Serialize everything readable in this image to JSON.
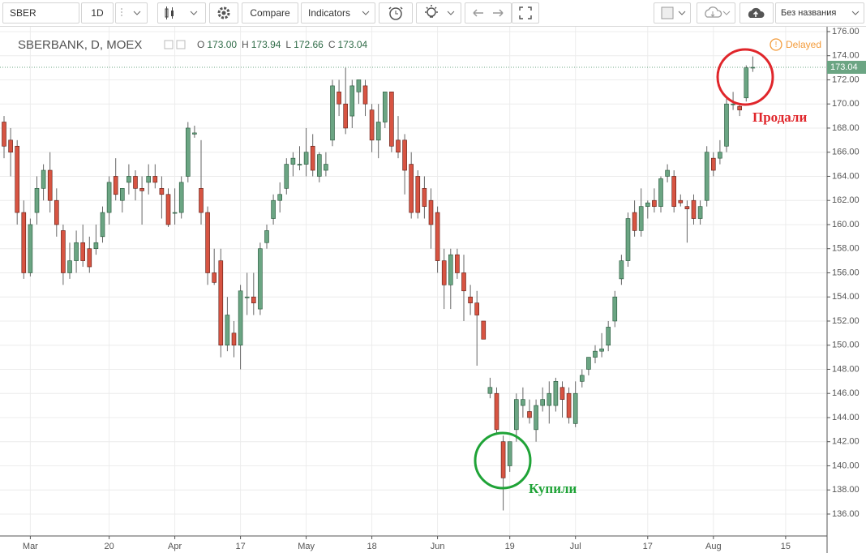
{
  "toolbar": {
    "symbol": "SBER",
    "interval": "1D",
    "compare": "Compare",
    "indicators": "Indicators",
    "layout_name": "Без названия"
  },
  "chart_data": {
    "type": "candlestick",
    "title": "SBERBANK, D, MOEX",
    "ohlc_legend": [
      {
        "key": "O",
        "value": "173.00"
      },
      {
        "key": "H",
        "value": "173.94"
      },
      {
        "key": "L",
        "value": "172.66"
      },
      {
        "key": "C",
        "value": "173.04"
      }
    ],
    "status": "Delayed",
    "up_color": "#6ba583",
    "down_color": "#d75442",
    "grid": true,
    "open": [
      168.5,
      167,
      166.5,
      161,
      156,
      161,
      163,
      164.5,
      162,
      159.5,
      156,
      157,
      158.5,
      158,
      158,
      159,
      161,
      164,
      162,
      163.5,
      164,
      163,
      163.5,
      164,
      163,
      162.5,
      161,
      161,
      164,
      167.5,
      163,
      161,
      156,
      157,
      150,
      151,
      150,
      154,
      154,
      153,
      158.5,
      160.5,
      162,
      163,
      165,
      165,
      165,
      166.5,
      164,
      164.5,
      167,
      171,
      170,
      169,
      171,
      171.5,
      169.5,
      167,
      168.5,
      171,
      167,
      167,
      165,
      164,
      163,
      162,
      161,
      157,
      155,
      157.5,
      156,
      154,
      153.5,
      152,
      146,
      146,
      142,
      140,
      143,
      145,
      144.5,
      143,
      145,
      145,
      145,
      146.5,
      146,
      143.5,
      147,
      148,
      149,
      149.5,
      150,
      152,
      155.5,
      157,
      161,
      159.5,
      161.5,
      162,
      161.5,
      164,
      164,
      162,
      161.5,
      162,
      160.5,
      162,
      165.5,
      165.5,
      166.5,
      170,
      169.8,
      170.5,
      173
    ],
    "high": [
      169,
      168,
      167,
      162,
      160.5,
      164,
      165,
      166,
      163,
      160,
      158.5,
      159.5,
      160,
      159,
      160,
      161.5,
      164,
      165.5,
      163,
      165,
      164.5,
      164,
      165,
      165,
      164,
      163,
      163,
      164,
      168.5,
      168.2,
      167,
      161.5,
      158,
      158,
      154,
      152,
      155,
      156,
      156,
      158.5,
      160,
      162.5,
      163.5,
      165.5,
      166,
      166.5,
      168,
      167.5,
      166,
      166,
      172,
      172,
      173,
      172,
      172,
      172,
      170,
      170,
      171,
      171,
      169,
      167.5,
      166,
      164.5,
      164,
      163,
      161.5,
      158,
      158,
      158,
      157.5,
      155,
      154.5,
      152,
      147.3,
      146.5,
      142.5,
      142,
      146,
      146.5,
      145.5,
      145.5,
      146.5,
      147,
      147.3,
      147,
      146.5,
      147,
      148,
      149,
      150,
      151,
      152,
      154.5,
      157.5,
      161,
      162,
      163,
      162,
      163,
      164,
      165,
      164.5,
      162.5,
      162,
      162.5,
      162,
      166.5,
      166,
      167,
      170.5,
      171,
      170,
      173.2,
      173.94
    ],
    "low": [
      165.5,
      164,
      160,
      155.5,
      155.7,
      160,
      162,
      161,
      159,
      155,
      155.5,
      156,
      156.5,
      156,
      157.5,
      158.5,
      160,
      162,
      161,
      162.5,
      162,
      160,
      162.5,
      163,
      160.5,
      159.8,
      160,
      160.5,
      163.5,
      167.2,
      160,
      155,
      155,
      149,
      149.5,
      149,
      148,
      152.5,
      152.5,
      152.5,
      158,
      160,
      161,
      162.5,
      164,
      164.5,
      164,
      164,
      163.5,
      164,
      166.5,
      169,
      167.5,
      168,
      170,
      169,
      166,
      165.5,
      168,
      166,
      165.5,
      162.5,
      160.5,
      160.5,
      160.5,
      158,
      156,
      153,
      153,
      155.5,
      152,
      152.5,
      148.3,
      150.5,
      145.6,
      142.7,
      136.3,
      139.5,
      142,
      144,
      143.5,
      142,
      144.5,
      143.5,
      144.5,
      144,
      143.5,
      143.2,
      146.5,
      147.5,
      148.5,
      149,
      149.5,
      151.5,
      155,
      156.5,
      159,
      159,
      160.5,
      161,
      161,
      163.5,
      161,
      161.5,
      158.5,
      160,
      160,
      161.5,
      164,
      165,
      166,
      169.5,
      169,
      170.2,
      172.66
    ],
    "close": [
      166.5,
      166,
      161,
      156,
      160,
      163,
      164.5,
      162,
      160,
      156,
      157,
      158.5,
      157,
      156.5,
      158.5,
      161,
      163.5,
      162.5,
      163,
      164,
      163,
      162.8,
      164,
      163.5,
      162.5,
      160,
      161,
      163.5,
      168,
      167.6,
      161,
      156,
      155.2,
      150,
      152.5,
      150,
      154.5,
      154,
      153.5,
      158,
      159.5,
      162,
      162.5,
      165,
      165.5,
      165,
      166,
      164.5,
      165.8,
      165,
      171.5,
      170,
      168,
      171.5,
      172,
      170,
      167,
      168.5,
      171,
      166.5,
      166,
      164.5,
      161,
      161,
      161.5,
      160,
      157,
      155,
      157.5,
      156,
      154.5,
      153.5,
      152.5,
      150.5,
      146.5,
      143,
      139,
      142,
      145.5,
      145.5,
      144,
      145,
      145.5,
      146,
      147,
      145.5,
      144,
      146,
      147.5,
      149,
      149.5,
      149.7,
      151.5,
      154,
      157,
      160.5,
      159.5,
      161.5,
      161.8,
      161.5,
      163.8,
      164.5,
      161.5,
      161.8,
      161.3,
      160.5,
      161.5,
      166,
      164.5,
      166,
      170,
      170,
      169.5,
      173,
      173.04
    ],
    "last_price": {
      "value": 173.04,
      "label": "173.04"
    },
    "xlim": [
      -0.617,
      125.31
    ],
    "xticks": [
      {
        "value": 4,
        "label": "Mar"
      },
      {
        "value": 16,
        "label": "20"
      },
      {
        "value": 26,
        "label": "Apr"
      },
      {
        "value": 36,
        "label": "17"
      },
      {
        "value": 46,
        "label": "May"
      },
      {
        "value": 56,
        "label": "18"
      },
      {
        "value": 66,
        "label": "Jun"
      },
      {
        "value": 77,
        "label": "19"
      },
      {
        "value": 87,
        "label": "Jul"
      },
      {
        "value": 98,
        "label": "17"
      },
      {
        "value": 108,
        "label": "Aug"
      },
      {
        "value": 119,
        "label": "15"
      }
    ],
    "ylim": [
      134.25,
      176.4
    ],
    "yticks": [
      {
        "value": 136,
        "label": "136.00"
      },
      {
        "value": 138,
        "label": "138.00"
      },
      {
        "value": 140,
        "label": "140.00"
      },
      {
        "value": 142,
        "label": "142.00"
      },
      {
        "value": 144,
        "label": "144.00"
      },
      {
        "value": 146,
        "label": "146.00"
      },
      {
        "value": 148,
        "label": "148.00"
      },
      {
        "value": 150,
        "label": "150.00"
      },
      {
        "value": 152,
        "label": "152.00"
      },
      {
        "value": 154,
        "label": "154.00"
      },
      {
        "value": 156,
        "label": "156.00"
      },
      {
        "value": 158,
        "label": "158.00"
      },
      {
        "value": 160,
        "label": "160.00"
      },
      {
        "value": 162,
        "label": "162.00"
      },
      {
        "value": 164,
        "label": "164.00"
      },
      {
        "value": 166,
        "label": "166.00"
      },
      {
        "value": 168,
        "label": "168.00"
      },
      {
        "value": 170,
        "label": "170.00"
      },
      {
        "value": 172,
        "label": "172.00"
      },
      {
        "value": 174,
        "label": "174.00"
      },
      {
        "value": 176,
        "label": "176.00"
      }
    ],
    "annotations": [
      {
        "text": "Продали",
        "color": "#e0262b"
      },
      {
        "text": "Купили",
        "color": "#1fa337"
      }
    ]
  }
}
